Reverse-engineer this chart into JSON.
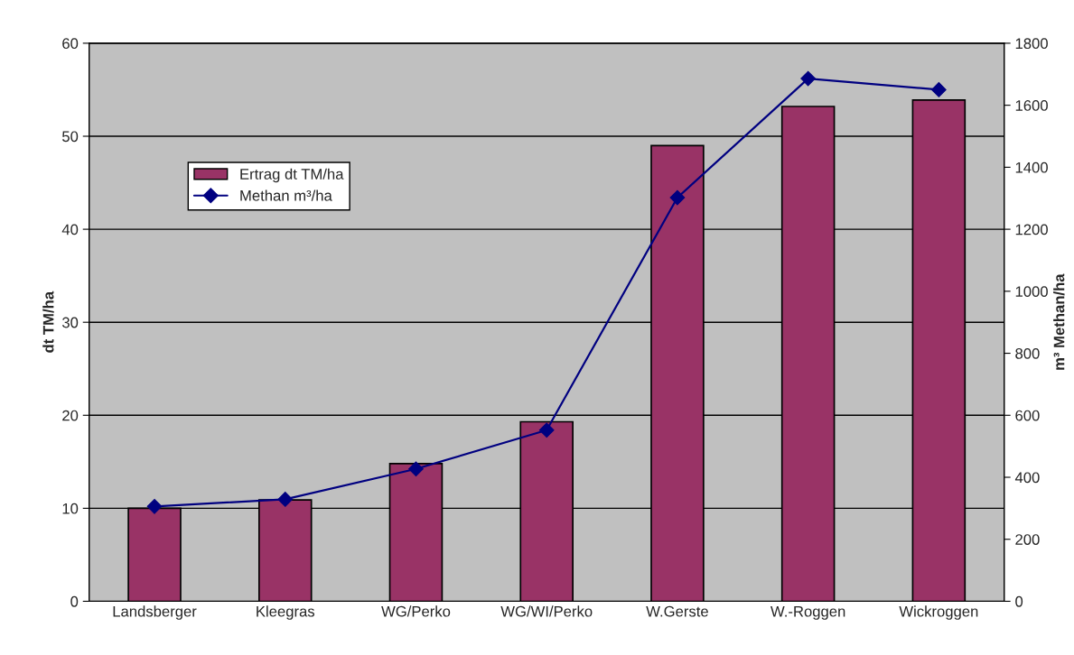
{
  "chart_data": {
    "type": "bar",
    "categories": [
      "Landsberger",
      "Kleegras",
      "WG/Perko",
      "WG/WI/Perko",
      "W.Gerste",
      "W.-Roggen",
      "Wickroggen"
    ],
    "series": [
      {
        "name": "Ertrag dt TM/ha",
        "color": "#993366",
        "values": [
          10.0,
          10.9,
          14.8,
          19.3,
          49.0,
          53.2,
          53.9
        ]
      },
      {
        "name": "Methan m³/ha",
        "type": "line",
        "axis": "y2",
        "color": "#000080",
        "marker": "diamond",
        "values": [
          306,
          329,
          427,
          552,
          1302,
          1686,
          1650
        ]
      }
    ],
    "ylabel": "dt TM/ha",
    "y2label": "m³ Methan/ha",
    "ylim": [
      0,
      60
    ],
    "yticks": [
      0,
      10,
      20,
      30,
      40,
      50,
      60
    ],
    "y2lim": [
      0,
      1800
    ],
    "y2ticks": [
      0,
      200,
      400,
      600,
      800,
      1000,
      1200,
      1400,
      1600,
      1800
    ],
    "grid": "y",
    "legend": "top left"
  }
}
